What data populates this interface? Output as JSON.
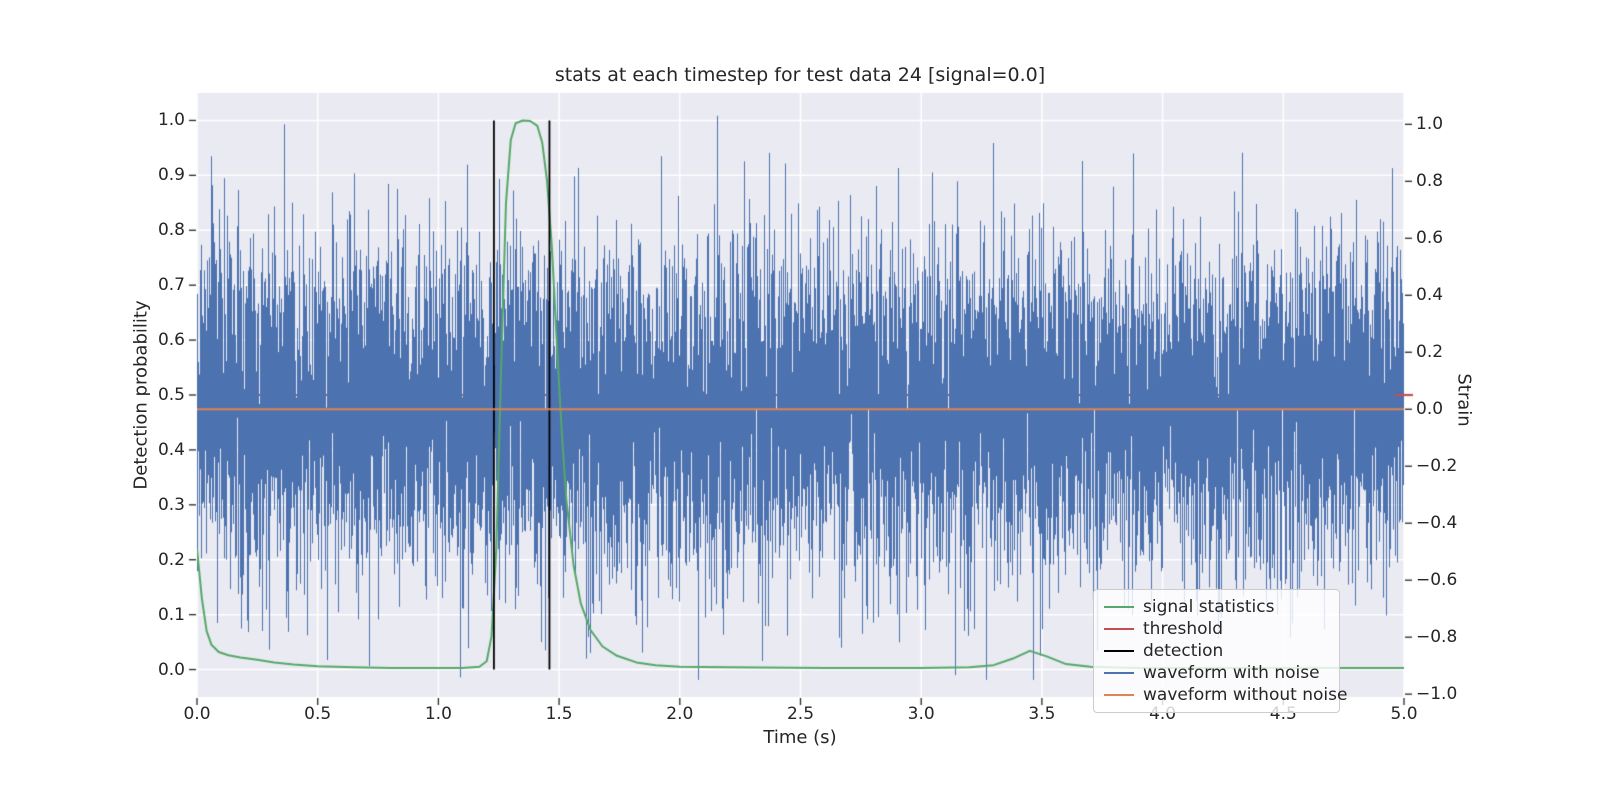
{
  "figure": {
    "title": "stats at each timestep for test data 24 [signal=0.0]",
    "xlabel": "Time (s)",
    "ylabel_left": "Detection probability",
    "ylabel_right": "Strain"
  },
  "chart_data": {
    "type": "line",
    "title": "stats at each timestep for test data 24 [signal=0.0]",
    "xlabel": "Time (s)",
    "ylabel_left": "Detection probability",
    "ylabel_right": "Strain",
    "x_lim": [
      0.0,
      5.0
    ],
    "y_left_lim": [
      -0.05,
      1.05
    ],
    "y_right_lim": [
      -1.01,
      1.11
    ],
    "grid": true,
    "background": "#eaeaf2",
    "grid_color": "#ffffff",
    "tick_color": "#262626",
    "x_ticks": {
      "values": [
        0.0,
        0.5,
        1.0,
        1.5,
        2.0,
        2.5,
        3.0,
        3.5,
        4.0,
        4.5,
        5.0
      ],
      "labels": [
        "0.0",
        "0.5",
        "1.0",
        "1.5",
        "2.0",
        "2.5",
        "3.0",
        "3.5",
        "4.0",
        "4.5",
        "5.0"
      ]
    },
    "y_left_ticks": {
      "values": [
        0.0,
        0.1,
        0.2,
        0.3,
        0.4,
        0.5,
        0.6,
        0.7,
        0.8,
        0.9,
        1.0
      ],
      "labels": [
        "0.0",
        "0.1",
        "0.2",
        "0.3",
        "0.4",
        "0.5",
        "0.6",
        "0.7",
        "0.8",
        "0.9",
        "1.0"
      ]
    },
    "y_right_ticks": {
      "values": [
        -1.0,
        -0.8,
        -0.6,
        -0.4,
        -0.2,
        0.0,
        0.2,
        0.4,
        0.6,
        0.8,
        1.0
      ],
      "labels": [
        "−1.0",
        "−0.8",
        "−0.6",
        "−0.4",
        "−0.2",
        "0.0",
        "0.2",
        "0.4",
        "0.6",
        "0.8",
        "1.0"
      ]
    },
    "legend_position": "lower right",
    "series": [
      {
        "name": "signal statistics",
        "axis": "left",
        "style": "line",
        "color": "#55a868",
        "points": [
          [
            0.0,
            0.22
          ],
          [
            0.02,
            0.13
          ],
          [
            0.04,
            0.07
          ],
          [
            0.06,
            0.045
          ],
          [
            0.09,
            0.032
          ],
          [
            0.13,
            0.026
          ],
          [
            0.18,
            0.022
          ],
          [
            0.25,
            0.018
          ],
          [
            0.32,
            0.013
          ],
          [
            0.4,
            0.009
          ],
          [
            0.5,
            0.006
          ],
          [
            0.65,
            0.004
          ],
          [
            0.8,
            0.003
          ],
          [
            1.0,
            0.003
          ],
          [
            1.1,
            0.003
          ],
          [
            1.17,
            0.005
          ],
          [
            1.2,
            0.015
          ],
          [
            1.22,
            0.06
          ],
          [
            1.24,
            0.22
          ],
          [
            1.26,
            0.55
          ],
          [
            1.28,
            0.85
          ],
          [
            1.3,
            0.965
          ],
          [
            1.32,
            0.995
          ],
          [
            1.35,
            1.0
          ],
          [
            1.38,
            0.999
          ],
          [
            1.41,
            0.99
          ],
          [
            1.43,
            0.96
          ],
          [
            1.45,
            0.89
          ],
          [
            1.47,
            0.77
          ],
          [
            1.49,
            0.6
          ],
          [
            1.51,
            0.44
          ],
          [
            1.53,
            0.31
          ],
          [
            1.56,
            0.19
          ],
          [
            1.59,
            0.12
          ],
          [
            1.63,
            0.072
          ],
          [
            1.68,
            0.042
          ],
          [
            1.74,
            0.025
          ],
          [
            1.82,
            0.013
          ],
          [
            1.9,
            0.008
          ],
          [
            2.0,
            0.005
          ],
          [
            2.2,
            0.004
          ],
          [
            2.6,
            0.003
          ],
          [
            3.0,
            0.003
          ],
          [
            3.2,
            0.004
          ],
          [
            3.3,
            0.008
          ],
          [
            3.38,
            0.02
          ],
          [
            3.45,
            0.034
          ],
          [
            3.52,
            0.024
          ],
          [
            3.6,
            0.01
          ],
          [
            3.7,
            0.005
          ],
          [
            3.9,
            0.003
          ],
          [
            4.2,
            0.003
          ],
          [
            4.6,
            0.003
          ],
          [
            5.0,
            0.003
          ]
        ]
      },
      {
        "name": "threshold",
        "axis": "left",
        "style": "hline",
        "color": "#c44e52",
        "value": 0.5
      },
      {
        "name": "detection",
        "axis": "left",
        "style": "vline",
        "color": "#000000",
        "x": [
          1.23,
          1.46
        ],
        "y_span": [
          0.0,
          1.0
        ]
      },
      {
        "name": "waveform with noise",
        "axis": "right",
        "style": "noise",
        "color": "#4c72b0",
        "mean": 0.0,
        "std": 0.28,
        "samples_per_column": 8,
        "seed": 24,
        "notable_spikes": [
          {
            "t": 0.36,
            "strain": 1.0
          },
          {
            "t": 2.37,
            "strain": 0.9
          },
          {
            "t": 3.15,
            "strain": 0.8
          },
          {
            "t": 4.33,
            "strain": 0.82
          },
          {
            "t": 0.54,
            "strain": -0.88
          },
          {
            "t": 1.62,
            "strain": -0.8
          },
          {
            "t": 2.9,
            "strain": -0.72
          }
        ]
      },
      {
        "name": "waveform without noise",
        "axis": "right",
        "style": "hline",
        "color": "#dd8452",
        "value": 0.0
      }
    ]
  },
  "legend": {
    "items": [
      {
        "label": "signal statistics",
        "color": "#55a868"
      },
      {
        "label": "threshold",
        "color": "#c44e52"
      },
      {
        "label": "detection",
        "color": "#000000"
      },
      {
        "label": "waveform with noise",
        "color": "#4c72b0"
      },
      {
        "label": "waveform without noise",
        "color": "#dd8452"
      }
    ]
  },
  "colors": {
    "figure_background": "#ffffff",
    "axes_background": "#eaeaf2",
    "grid": "#ffffff",
    "text": "#262626"
  }
}
